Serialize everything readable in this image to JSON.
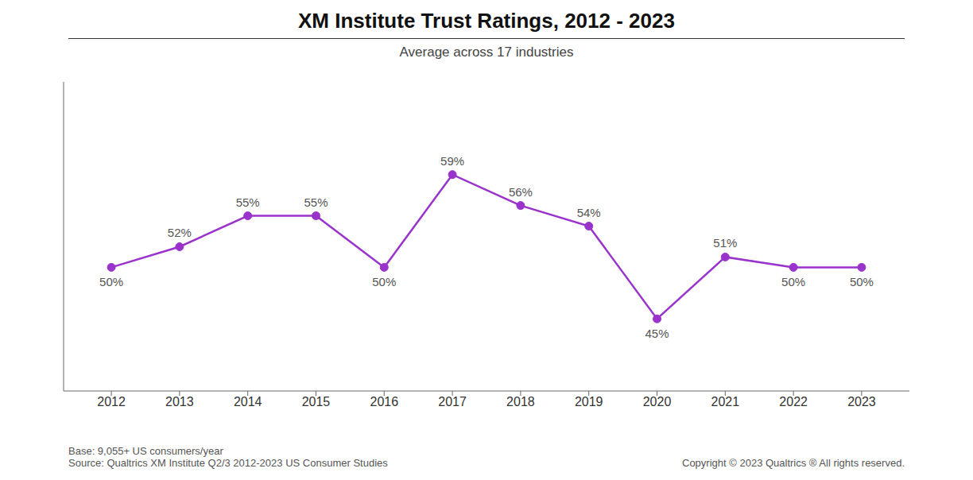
{
  "chart_data": {
    "type": "line",
    "title": "XM Institute Trust Ratings, 2012 - 2023",
    "subtitle": "Average across 17 industries",
    "annotations": [
      "Base: 9,055+ US consumers/year",
      "Source: Qualtrics XM Institute Q2/3 2012-2023 US Consumer Studies",
      "Copyright © 2023 Qualtrics ® All rights reserved."
    ],
    "x": [
      2012,
      2013,
      2014,
      2015,
      2016,
      2017,
      2018,
      2019,
      2020,
      2021,
      2022,
      2023
    ],
    "values": [
      50,
      52,
      55,
      55,
      50,
      59,
      56,
      54,
      45,
      51,
      50,
      50
    ],
    "value_labels": [
      "50%",
      "52%",
      "55%",
      "55%",
      "50%",
      "59%",
      "56%",
      "54%",
      "45%",
      "51%",
      "50%",
      "50%"
    ],
    "data_labels": true,
    "color": "#9933CC",
    "marker": "circle",
    "xlim": [
      2011.3,
      2023.7
    ],
    "xticks": [
      2012,
      2013,
      2014,
      2015,
      2016,
      2017,
      2018,
      2019,
      2020,
      2021,
      2022,
      2023
    ],
    "ylim": [
      38,
      68
    ],
    "tick_labels": "x",
    "grid": false
  }
}
